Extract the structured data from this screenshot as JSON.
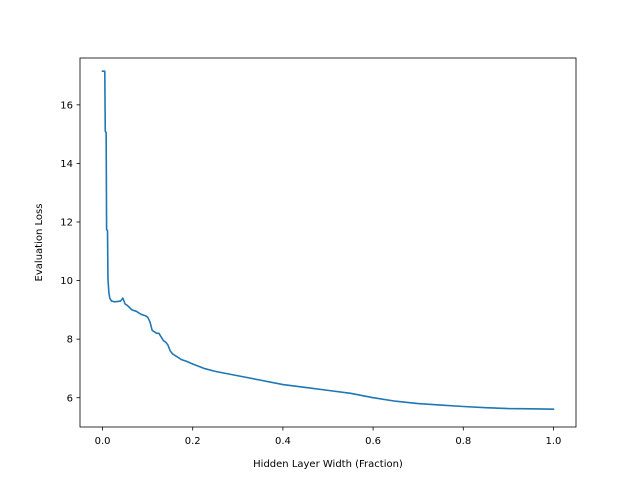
{
  "chart_data": {
    "type": "line",
    "xlabel": "Hidden Layer Width (Fraction)",
    "ylabel": "Evaluation Loss",
    "xlim": [
      -0.05,
      1.05
    ],
    "ylim": [
      5.0,
      17.6
    ],
    "xticks": [
      0.0,
      0.2,
      0.4,
      0.6,
      0.8,
      1.0
    ],
    "xtick_labels": [
      "0.0",
      "0.2",
      "0.4",
      "0.6",
      "0.8",
      "1.0"
    ],
    "yticks": [
      6,
      8,
      10,
      12,
      14,
      16
    ],
    "ytick_labels": [
      "6",
      "8",
      "10",
      "12",
      "14",
      "16"
    ],
    "grid": false,
    "line_color": "#1f77b4",
    "series": [
      {
        "x": [
          0.0,
          0.005,
          0.006,
          0.008,
          0.009,
          0.011,
          0.012,
          0.014,
          0.016,
          0.02,
          0.025,
          0.03,
          0.04,
          0.045,
          0.05,
          0.055,
          0.065,
          0.075,
          0.085,
          0.095,
          0.1,
          0.105,
          0.11,
          0.115,
          0.12,
          0.125,
          0.135,
          0.14,
          0.145,
          0.15,
          0.155,
          0.16,
          0.165,
          0.175,
          0.185,
          0.2,
          0.225,
          0.25,
          0.3,
          0.35,
          0.4,
          0.45,
          0.5,
          0.55,
          0.6,
          0.65,
          0.7,
          0.75,
          0.8,
          0.85,
          0.9,
          0.95,
          1.0
        ],
        "y": [
          17.15,
          17.15,
          15.1,
          15.05,
          11.75,
          11.7,
          10.05,
          9.6,
          9.4,
          9.3,
          9.28,
          9.28,
          9.3,
          9.4,
          9.2,
          9.15,
          9.0,
          8.95,
          8.85,
          8.8,
          8.75,
          8.6,
          8.3,
          8.25,
          8.2,
          8.2,
          7.95,
          7.9,
          7.8,
          7.6,
          7.5,
          7.45,
          7.4,
          7.3,
          7.25,
          7.15,
          7.0,
          6.9,
          6.75,
          6.6,
          6.45,
          6.35,
          6.25,
          6.15,
          6.0,
          5.88,
          5.8,
          5.75,
          5.7,
          5.66,
          5.63,
          5.62,
          5.61
        ]
      }
    ]
  }
}
